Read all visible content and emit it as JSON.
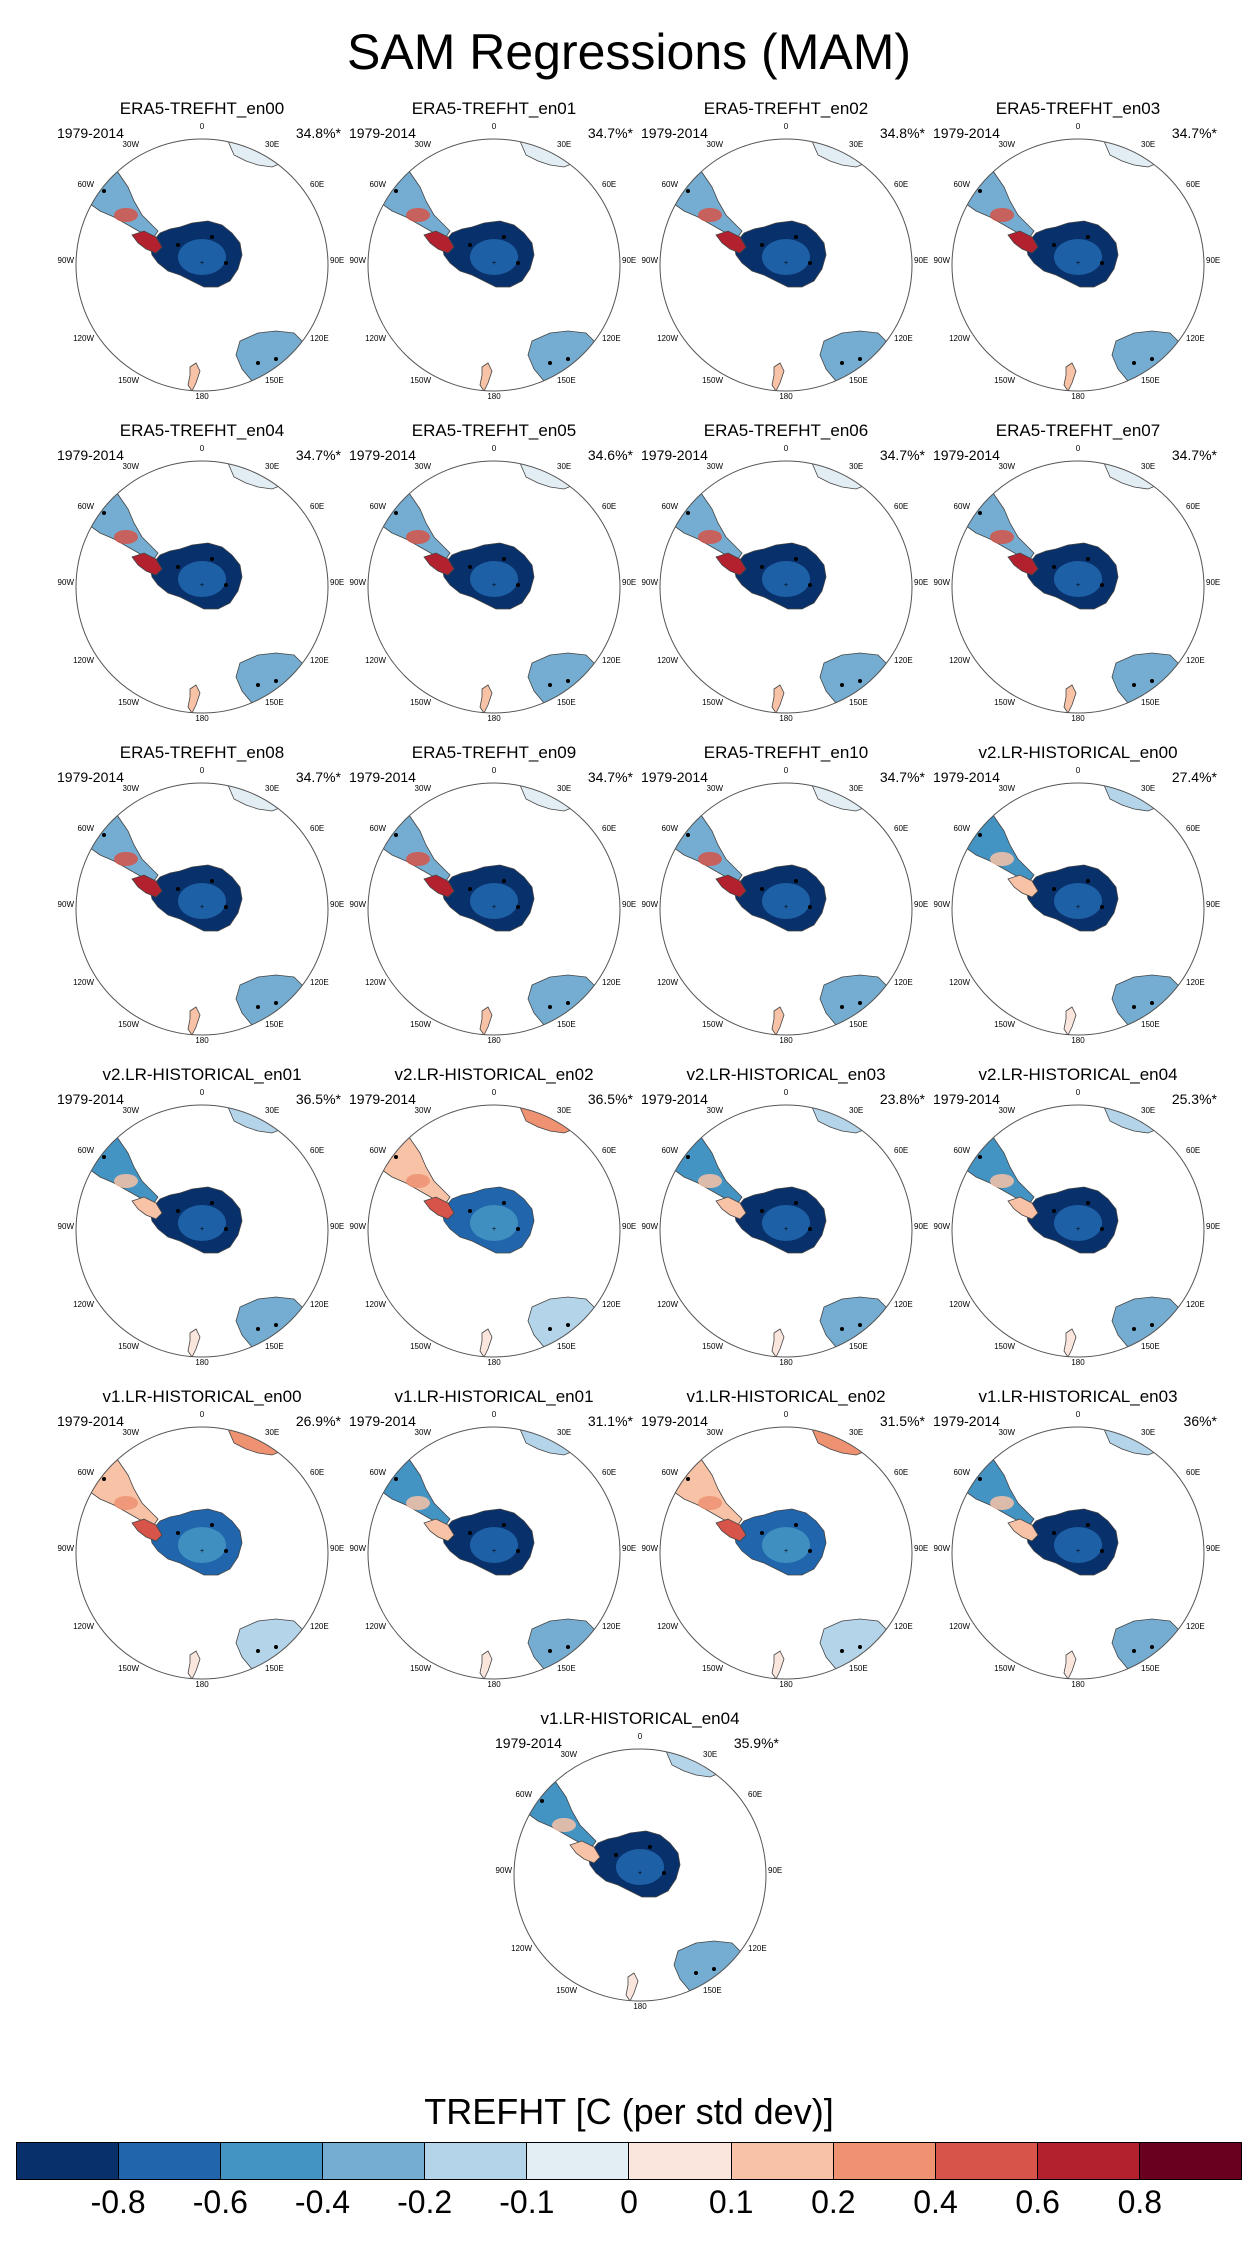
{
  "title": "SAM Regressions (MAM)",
  "colorbar": {
    "title": "TREFHT [C (per std dev)]",
    "levels": [
      "-0.8",
      "-0.6",
      "-0.4",
      "-0.2",
      "-0.1",
      "0",
      "0.1",
      "0.2",
      "0.4",
      "0.6",
      "0.8"
    ],
    "colors": [
      "#08306b",
      "#2166ac",
      "#4393c3",
      "#74add1",
      "#b4d4e9",
      "#e3edf4",
      "#fbe6de",
      "#f8c2a6",
      "#ee9272",
      "#d6544a",
      "#b3202e",
      "#6a0020"
    ]
  },
  "longitude_labels": [
    "0",
    "30E",
    "60E",
    "90E",
    "120E",
    "150E",
    "180",
    "150W",
    "120W",
    "90W",
    "60W",
    "30W"
  ],
  "chart_data": {
    "type": "heatmap",
    "projection": "south polar stereographic",
    "variable": "TREFHT",
    "units": "C (per std dev)",
    "panels": [
      {
        "title": "ERA5-TREFHT_en00",
        "period": "1979-2014",
        "variance": "34.8%*",
        "pattern": "era5"
      },
      {
        "title": "ERA5-TREFHT_en01",
        "period": "1979-2014",
        "variance": "34.7%*",
        "pattern": "era5"
      },
      {
        "title": "ERA5-TREFHT_en02",
        "period": "1979-2014",
        "variance": "34.8%*",
        "pattern": "era5"
      },
      {
        "title": "ERA5-TREFHT_en03",
        "period": "1979-2014",
        "variance": "34.7%*",
        "pattern": "era5"
      },
      {
        "title": "ERA5-TREFHT_en04",
        "period": "1979-2014",
        "variance": "34.7%*",
        "pattern": "era5"
      },
      {
        "title": "ERA5-TREFHT_en05",
        "period": "1979-2014",
        "variance": "34.6%*",
        "pattern": "era5"
      },
      {
        "title": "ERA5-TREFHT_en06",
        "period": "1979-2014",
        "variance": "34.7%*",
        "pattern": "era5"
      },
      {
        "title": "ERA5-TREFHT_en07",
        "period": "1979-2014",
        "variance": "34.7%*",
        "pattern": "era5"
      },
      {
        "title": "ERA5-TREFHT_en08",
        "period": "1979-2014",
        "variance": "34.7%*",
        "pattern": "era5"
      },
      {
        "title": "ERA5-TREFHT_en09",
        "period": "1979-2014",
        "variance": "34.7%*",
        "pattern": "era5"
      },
      {
        "title": "ERA5-TREFHT_en10",
        "period": "1979-2014",
        "variance": "34.7%*",
        "pattern": "era5"
      },
      {
        "title": "v2.LR-HISTORICAL_en00",
        "period": "1979-2014",
        "variance": "27.4%*",
        "pattern": "model-cold"
      },
      {
        "title": "v2.LR-HISTORICAL_en01",
        "period": "1979-2014",
        "variance": "36.5%*",
        "pattern": "model-cold"
      },
      {
        "title": "v2.LR-HISTORICAL_en02",
        "period": "1979-2014",
        "variance": "36.5%*",
        "pattern": "model-warm"
      },
      {
        "title": "v2.LR-HISTORICAL_en03",
        "period": "1979-2014",
        "variance": "23.8%*",
        "pattern": "model-cold"
      },
      {
        "title": "v2.LR-HISTORICAL_en04",
        "period": "1979-2014",
        "variance": "25.3%*",
        "pattern": "model-cold"
      },
      {
        "title": "v1.LR-HISTORICAL_en00",
        "period": "1979-2014",
        "variance": "26.9%*",
        "pattern": "model-warm"
      },
      {
        "title": "v1.LR-HISTORICAL_en01",
        "period": "1979-2014",
        "variance": "31.1%*",
        "pattern": "model-cold"
      },
      {
        "title": "v1.LR-HISTORICAL_en02",
        "period": "1979-2014",
        "variance": "31.5%*",
        "pattern": "model-warm"
      },
      {
        "title": "v1.LR-HISTORICAL_en03",
        "period": "1979-2014",
        "variance": "36%*",
        "pattern": "model-cold"
      },
      {
        "title": "v1.LR-HISTORICAL_en04",
        "period": "1979-2014",
        "variance": "35.9%*",
        "pattern": "model-cold"
      }
    ]
  }
}
